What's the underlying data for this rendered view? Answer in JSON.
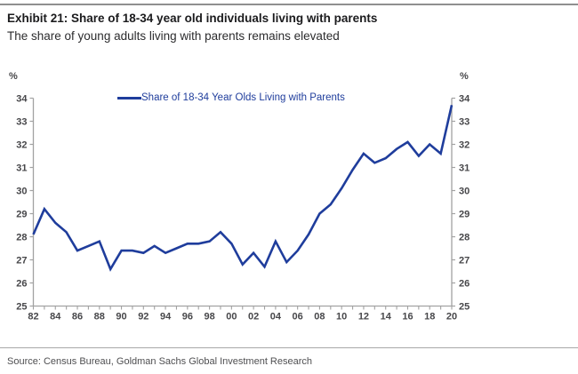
{
  "header": {
    "title": "Exhibit 21: Share of 18-34 year old individuals living with parents",
    "subtitle": "The share of young adults living with parents remains elevated"
  },
  "source_note": "Source: Census Bureau, Goldman Sachs Global Investment Research",
  "chart_data": {
    "type": "line",
    "title": "",
    "xlabel": "",
    "ylabel": "%",
    "unit_label": "%",
    "legend_position": "top-center",
    "grid": false,
    "ylim": [
      25,
      34
    ],
    "ytick_step": 1,
    "xtick_label_every": 2,
    "axis_color": "#a2a2a2",
    "tick_label_color": "#47474a",
    "x": [
      1982,
      1983,
      1984,
      1985,
      1986,
      1987,
      1988,
      1989,
      1990,
      1991,
      1992,
      1993,
      1994,
      1995,
      1996,
      1997,
      1998,
      1999,
      2000,
      2001,
      2002,
      2003,
      2004,
      2005,
      2006,
      2007,
      2008,
      2009,
      2010,
      2011,
      2012,
      2013,
      2014,
      2015,
      2016,
      2017,
      2018,
      2019,
      2020
    ],
    "series": [
      {
        "name": "Share of 18-34 Year Olds Living with Parents",
        "color": "#1f3d9c",
        "values": [
          28.1,
          29.2,
          28.6,
          28.2,
          27.4,
          27.6,
          27.8,
          26.6,
          27.4,
          27.4,
          27.3,
          27.6,
          27.3,
          27.5,
          27.7,
          27.7,
          27.8,
          28.2,
          27.7,
          26.8,
          27.3,
          26.7,
          27.8,
          26.9,
          27.4,
          28.1,
          29.0,
          29.4,
          30.1,
          30.9,
          31.6,
          31.2,
          31.4,
          31.8,
          32.1,
          31.5,
          32.0,
          31.6,
          33.7
        ]
      }
    ]
  }
}
